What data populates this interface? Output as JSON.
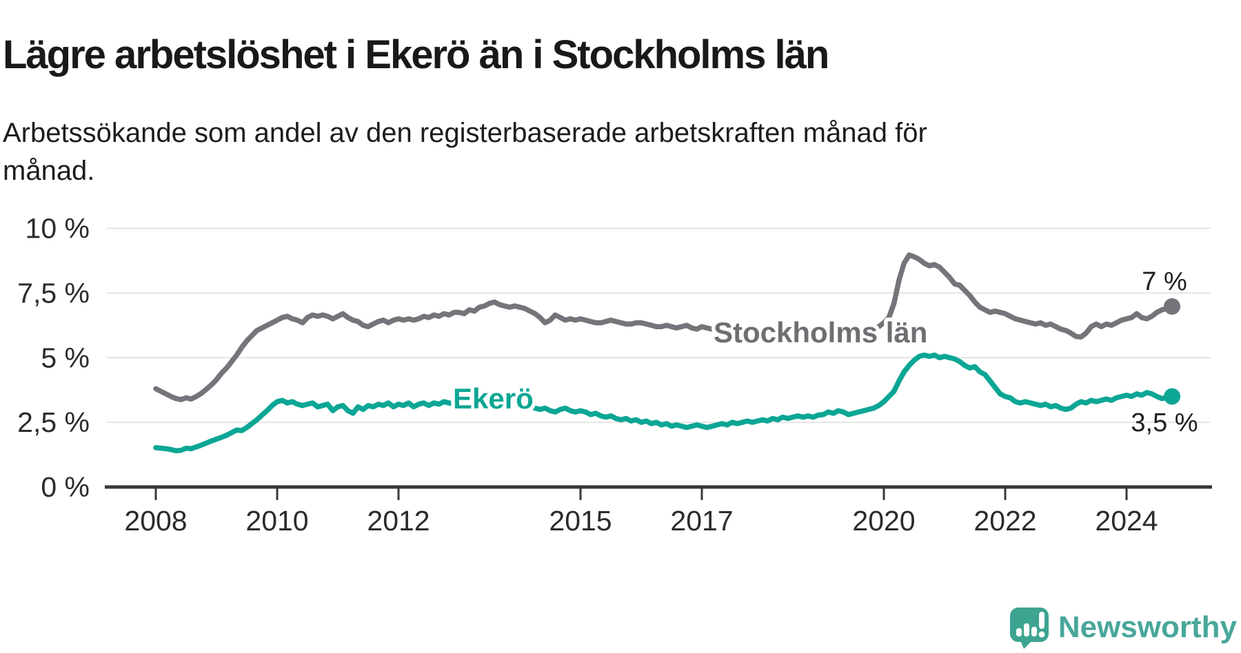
{
  "header": {
    "title": "Lägre arbetslöshet i Ekerö än i Stockholms län",
    "subtitle": "Arbetssökande som andel av den registerbaserade arbetskraften månad för månad."
  },
  "chart_data": {
    "type": "line",
    "title": "Lägre arbetslöshet i Ekerö än i Stockholms län",
    "xlabel": "",
    "ylabel": "",
    "unit": "%",
    "start": "2008-01",
    "end": "2024-10",
    "grid": "horizontal",
    "legend_position": "inline-labels",
    "ylim": [
      0,
      10
    ],
    "y_axis": {
      "ticks": [
        {
          "value": 0,
          "label": "0 %"
        },
        {
          "value": 2.5,
          "label": "2,5 %"
        },
        {
          "value": 5,
          "label": "5 %"
        },
        {
          "value": 7.5,
          "label": "7,5 %"
        },
        {
          "value": 10,
          "label": "10 %"
        }
      ]
    },
    "x_axis": {
      "ticks": [
        {
          "year": 2008,
          "label": "2008"
        },
        {
          "year": 2010,
          "label": "2010"
        },
        {
          "year": 2012,
          "label": "2012"
        },
        {
          "year": 2015,
          "label": "2015"
        },
        {
          "year": 2017,
          "label": "2017"
        },
        {
          "year": 2020,
          "label": "2020"
        },
        {
          "year": 2022,
          "label": "2022"
        },
        {
          "year": 2024,
          "label": "2024"
        }
      ]
    },
    "series": [
      {
        "name": "Stockholms län",
        "color": "#74747a",
        "end_label": "7 %",
        "end_value": 7,
        "values": [
          3.8,
          3.7,
          3.6,
          3.5,
          3.42,
          3.38,
          3.45,
          3.4,
          3.5,
          3.62,
          3.78,
          3.95,
          4.15,
          4.4,
          4.6,
          4.85,
          5.1,
          5.4,
          5.65,
          5.85,
          6.05,
          6.15,
          6.25,
          6.35,
          6.45,
          6.55,
          6.6,
          6.5,
          6.45,
          6.35,
          6.55,
          6.65,
          6.6,
          6.65,
          6.6,
          6.5,
          6.6,
          6.7,
          6.55,
          6.45,
          6.4,
          6.25,
          6.2,
          6.3,
          6.4,
          6.45,
          6.35,
          6.45,
          6.5,
          6.45,
          6.5,
          6.45,
          6.5,
          6.6,
          6.55,
          6.65,
          6.6,
          6.7,
          6.65,
          6.75,
          6.75,
          6.7,
          6.85,
          6.8,
          6.95,
          7.0,
          7.1,
          7.15,
          7.05,
          7.0,
          6.95,
          7.0,
          6.95,
          6.9,
          6.8,
          6.7,
          6.55,
          6.35,
          6.45,
          6.65,
          6.55,
          6.45,
          6.5,
          6.45,
          6.5,
          6.45,
          6.4,
          6.35,
          6.35,
          6.4,
          6.45,
          6.4,
          6.35,
          6.3,
          6.3,
          6.35,
          6.35,
          6.3,
          6.25,
          6.2,
          6.2,
          6.25,
          6.2,
          6.15,
          6.2,
          6.25,
          6.15,
          6.1,
          6.2,
          6.15,
          6.1,
          6.15,
          6.1,
          6.05,
          6.1,
          6.05,
          6.0,
          6.0,
          5.95,
          6.0,
          6.0,
          5.95,
          5.9,
          5.9,
          5.85,
          5.9,
          5.95,
          5.9,
          5.85,
          5.8,
          5.85,
          5.9,
          5.9,
          5.85,
          5.8,
          5.85,
          5.9,
          5.95,
          6.0,
          6.0,
          5.95,
          6.0,
          6.1,
          6.2,
          6.35,
          6.55,
          7.1,
          8.0,
          8.65,
          8.97,
          8.9,
          8.8,
          8.65,
          8.55,
          8.6,
          8.5,
          8.3,
          8.1,
          7.85,
          7.8,
          7.6,
          7.4,
          7.15,
          6.95,
          6.85,
          6.75,
          6.8,
          6.75,
          6.7,
          6.6,
          6.5,
          6.45,
          6.4,
          6.35,
          6.3,
          6.35,
          6.25,
          6.3,
          6.2,
          6.1,
          6.05,
          5.95,
          5.82,
          5.8,
          5.95,
          6.2,
          6.3,
          6.2,
          6.3,
          6.25,
          6.35,
          6.45,
          6.5,
          6.55,
          6.7,
          6.55,
          6.5,
          6.6,
          6.75,
          6.85,
          6.9,
          6.98
        ]
      },
      {
        "name": "Ekerö",
        "color": "#0ca694",
        "end_label": "3,5 %",
        "end_value": 3.5,
        "values": [
          1.52,
          1.5,
          1.48,
          1.45,
          1.4,
          1.42,
          1.5,
          1.48,
          1.55,
          1.62,
          1.7,
          1.78,
          1.85,
          1.92,
          2.0,
          2.1,
          2.2,
          2.18,
          2.3,
          2.45,
          2.6,
          2.78,
          2.95,
          3.15,
          3.3,
          3.35,
          3.25,
          3.3,
          3.2,
          3.15,
          3.2,
          3.25,
          3.1,
          3.15,
          3.2,
          2.95,
          3.1,
          3.15,
          2.95,
          2.85,
          3.1,
          3.0,
          3.15,
          3.1,
          3.2,
          3.15,
          3.25,
          3.1,
          3.2,
          3.15,
          3.25,
          3.1,
          3.2,
          3.25,
          3.15,
          3.25,
          3.2,
          3.3,
          3.25,
          3.2,
          3.25,
          3.3,
          3.2,
          3.25,
          3.3,
          3.25,
          3.3,
          3.25,
          3.2,
          3.25,
          3.15,
          3.2,
          3.15,
          3.1,
          3.15,
          3.05,
          3.0,
          3.05,
          2.95,
          2.9,
          3.0,
          3.05,
          2.95,
          2.9,
          2.95,
          2.9,
          2.8,
          2.85,
          2.75,
          2.7,
          2.75,
          2.65,
          2.6,
          2.65,
          2.55,
          2.6,
          2.5,
          2.55,
          2.45,
          2.5,
          2.4,
          2.45,
          2.35,
          2.4,
          2.35,
          2.3,
          2.35,
          2.4,
          2.35,
          2.3,
          2.35,
          2.4,
          2.45,
          2.4,
          2.5,
          2.45,
          2.5,
          2.55,
          2.5,
          2.55,
          2.6,
          2.55,
          2.65,
          2.6,
          2.7,
          2.65,
          2.7,
          2.75,
          2.7,
          2.75,
          2.7,
          2.78,
          2.8,
          2.9,
          2.85,
          2.95,
          2.9,
          2.8,
          2.85,
          2.9,
          2.95,
          3.0,
          3.05,
          3.15,
          3.3,
          3.5,
          3.7,
          4.1,
          4.45,
          4.7,
          4.9,
          5.05,
          5.1,
          5.05,
          5.1,
          5.0,
          5.05,
          5.0,
          4.95,
          4.85,
          4.7,
          4.6,
          4.65,
          4.45,
          4.35,
          4.1,
          3.85,
          3.6,
          3.5,
          3.45,
          3.3,
          3.25,
          3.3,
          3.25,
          3.2,
          3.15,
          3.2,
          3.1,
          3.15,
          3.05,
          3.0,
          3.05,
          3.2,
          3.3,
          3.25,
          3.35,
          3.3,
          3.35,
          3.4,
          3.35,
          3.45,
          3.5,
          3.55,
          3.5,
          3.6,
          3.55,
          3.65,
          3.6,
          3.5,
          3.42,
          3.45,
          3.5
        ]
      }
    ]
  },
  "logo": {
    "text": "Newsworthy",
    "icon": "newsworthy-speech-bubble-chart-icon",
    "icon_color": "#3ea492",
    "text_color": "#48a79a"
  }
}
